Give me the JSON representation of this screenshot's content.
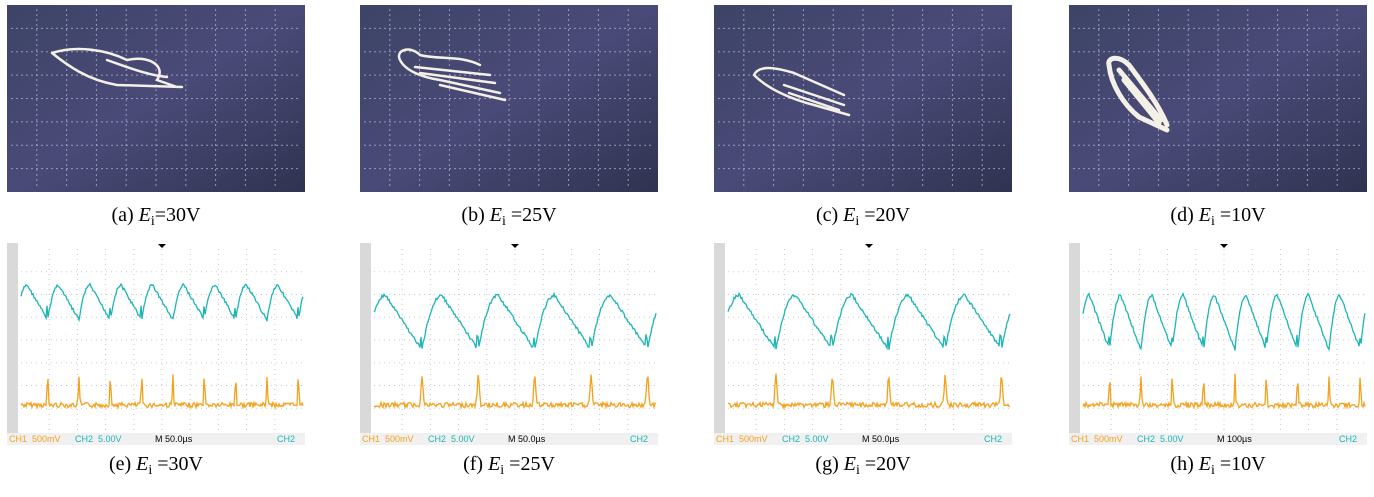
{
  "top_panels": [
    {
      "label": "(a)",
      "symbol": "E",
      "subscript": "i",
      "value": "=30V"
    },
    {
      "label": "(b)",
      "symbol": "E",
      "subscript": "i",
      "value": " =25V"
    },
    {
      "label": "(c)",
      "symbol": "E",
      "subscript": "i",
      "value": " =20V"
    },
    {
      "label": "(d)",
      "symbol": "E",
      "subscript": "i",
      "value": " =10V"
    }
  ],
  "bottom_panels": [
    {
      "label": "(e)",
      "symbol": "E",
      "subscript": "i",
      "value": " =30V",
      "ch1": "CH1  500mV",
      "ch2": "CH2  5.00V",
      "time": "M 50.0µs",
      "trigger": "CH2"
    },
    {
      "label": "(f)",
      "symbol": "E",
      "subscript": "i",
      "value": " =25V",
      "ch1": "CH1  500mV",
      "ch2": "CH2  5.00V",
      "time": "M 50.0µs",
      "trigger": "CH2"
    },
    {
      "label": "(g)",
      "symbol": "E",
      "subscript": "i",
      "value": " =20V",
      "ch1": "CH1  500mV",
      "ch2": "CH2  5.00V",
      "time": "M 50.0µs",
      "trigger": "CH2"
    },
    {
      "label": "(h)",
      "symbol": "E",
      "subscript": "i",
      "value": " =10V",
      "ch1": "CH1  500mV",
      "ch2": "CH2  5.00V",
      "time": "M 100µs",
      "trigger": "CH2"
    }
  ]
}
